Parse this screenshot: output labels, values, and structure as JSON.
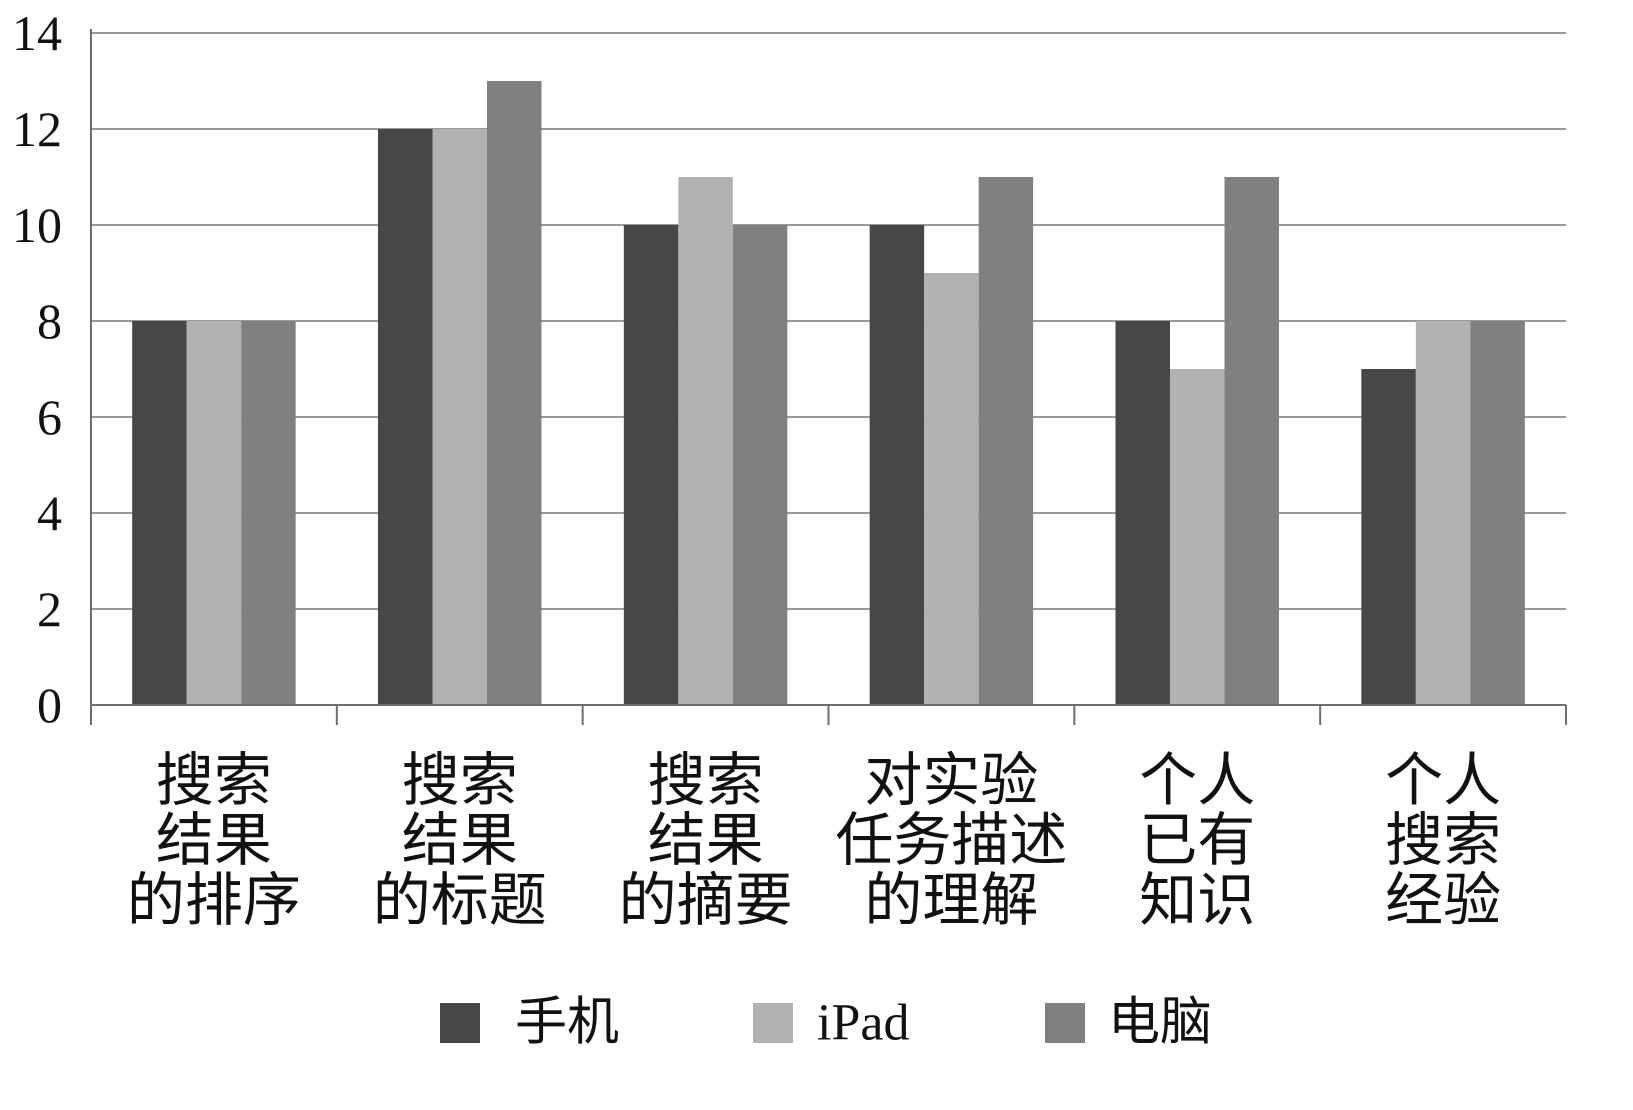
{
  "chart_data": {
    "type": "bar",
    "title": "",
    "xlabel": "",
    "ylabel": "",
    "ylim": [
      0,
      14
    ],
    "yticks": [
      0,
      2,
      4,
      6,
      8,
      10,
      12,
      14
    ],
    "grid": true,
    "legend_position": "bottom",
    "categories": [
      [
        "搜索",
        "结果",
        "的排序"
      ],
      [
        "搜索",
        "结果",
        "的标题"
      ],
      [
        "搜索",
        "结果",
        "的摘要"
      ],
      [
        "对实验",
        "任务描述",
        "的理解"
      ],
      [
        "个人",
        "已有",
        "知识"
      ],
      [
        "个人",
        "搜索",
        "经验"
      ]
    ],
    "series": [
      {
        "name": "手机",
        "color": "#474747",
        "values": [
          8,
          12,
          10,
          10,
          8,
          7
        ]
      },
      {
        "name": "iPad",
        "color": "#b2b2b2",
        "values": [
          8,
          12,
          11,
          9,
          7,
          8
        ]
      },
      {
        "name": "电脑",
        "color": "#808080",
        "values": [
          8,
          13,
          10,
          11,
          11,
          8
        ]
      }
    ]
  }
}
